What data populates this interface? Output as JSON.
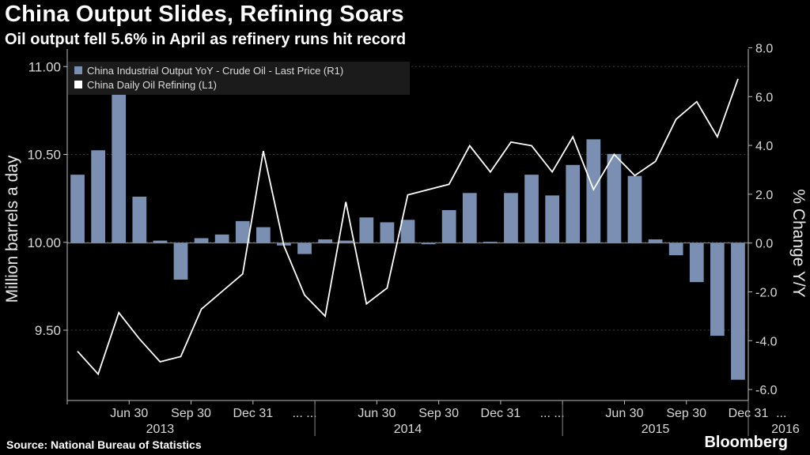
{
  "header": {
    "title": "China Output Slides, Refining Soars",
    "subtitle": "Oil output fell 5.6% in April as refinery runs hit record"
  },
  "footer": {
    "source": "Source: National Bureau of Statistics",
    "brand": "Bloomberg"
  },
  "colors": {
    "bar": "#7a8fb2",
    "line": "#ffffff",
    "background": "#000000"
  },
  "chart_data": {
    "type": "bar+line",
    "title": "China Output Slides, Refining Soars",
    "ylabel_left": "Million barrels a day",
    "ylabel_right": "% Change Y/Y",
    "ylim_left": [
      9.1,
      11.1
    ],
    "ylim_right": [
      -6.45,
      7.95
    ],
    "yticks_left": [
      "11.00",
      "10.50",
      "10.00",
      "9.50"
    ],
    "yticks_left_values": [
      11.0,
      10.5,
      10.0,
      9.5
    ],
    "yticks_right": [
      "8.0",
      "6.0",
      "4.0",
      "2.0",
      "0.0",
      "-2.0",
      "-4.0",
      "-6.0"
    ],
    "yticks_right_values": [
      8,
      6,
      4,
      2,
      0,
      -2,
      -4,
      -6
    ],
    "xtick_labels": [
      "Jun 30",
      "Sep 30",
      "Dec 31",
      "... ...",
      "Jun 30",
      "Sep 30",
      "Dec 31",
      "... ...",
      "Jun 30",
      "Sep 30",
      "Dec 31",
      "..."
    ],
    "xtick_months": [
      3,
      6,
      9,
      11.5,
      15,
      18,
      21,
      23.5,
      27,
      30,
      33,
      34.6
    ],
    "year_labels": [
      "2013",
      "2014",
      "2015",
      "2016"
    ],
    "year_centers": [
      4.5,
      16.5,
      28.5,
      34.8
    ],
    "legend": [
      {
        "label": "China Industrial Output YoY - Crude Oil - Last Price (R1)",
        "kind": "bar"
      },
      {
        "label": "China Daily Oil Refining  (L1)",
        "kind": "line"
      }
    ],
    "series": [
      {
        "name": "China Industrial Output YoY - Crude Oil - Last Price (R1)",
        "axis": "right",
        "type": "bar",
        "values": [
          2.8,
          3.8,
          7.2,
          1.9,
          0.1,
          -1.5,
          0.2,
          0.35,
          0.9,
          0.65,
          -0.1,
          -0.45,
          0.15,
          0.1,
          1.05,
          0.85,
          0.95,
          -0.05,
          1.35,
          2.05,
          0.05,
          2.05,
          2.8,
          1.95,
          3.2,
          4.25,
          3.65,
          2.75,
          0.15,
          -0.5,
          -1.6,
          -3.8,
          -5.6
        ]
      },
      {
        "name": "China Daily Oil Refining  (L1)",
        "axis": "left",
        "type": "line",
        "values": [
          9.38,
          9.25,
          9.6,
          9.45,
          9.32,
          9.35,
          9.62,
          9.72,
          9.82,
          10.52,
          9.98,
          9.7,
          9.58,
          10.23,
          9.65,
          9.74,
          10.27,
          10.3,
          10.33,
          10.55,
          10.4,
          10.57,
          10.55,
          10.4,
          10.6,
          10.3,
          10.5,
          10.38,
          10.46,
          10.7,
          10.8,
          10.6,
          10.93
        ]
      }
    ]
  }
}
